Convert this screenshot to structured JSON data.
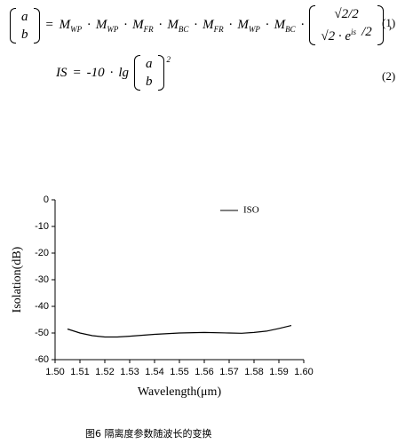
{
  "equations": [
    {
      "number": "(1)",
      "tokens": [
        {
          "rows": [
            [
              {
                "t": "a"
              }
            ],
            [
              {
                "t": "b"
              }
            ]
          ]
        },
        {
          "t": "="
        },
        {
          "t": "M",
          "sub": "WP"
        },
        {
          "t": "·"
        },
        {
          "t": "M",
          "sub": "WP"
        },
        {
          "t": "·"
        },
        {
          "t": "M",
          "sub": "FR"
        },
        {
          "t": "·"
        },
        {
          "t": "M",
          "sub": "BC"
        },
        {
          "t": "·"
        },
        {
          "t": "M",
          "sub": "FR"
        },
        {
          "t": "·"
        },
        {
          "t": "M",
          "sub": "WP"
        },
        {
          "t": "·"
        },
        {
          "t": "M",
          "sub": "BC"
        },
        {
          "t": "·"
        },
        {
          "rows": [
            [
              {
                "t": "√2/2"
              }
            ],
            [
              {
                "t": "√2 · e",
                "sup": "is"
              },
              {
                "t": "/2"
              }
            ]
          ]
        },
        {
          "t": ","
        }
      ]
    },
    {
      "number": "(2)",
      "tokens": [
        {
          "t": "IS"
        },
        {
          "t": "="
        },
        {
          "t": "-10"
        },
        {
          "t": "·"
        },
        {
          "t": "lg"
        },
        {
          "rows": [
            [
              {
                "t": "a"
              }
            ],
            [
              {
                "t": "b"
              }
            ]
          ],
          "sup": "2"
        }
      ]
    }
  ],
  "chart_data": {
    "type": "line",
    "xlabel": "Wavelength(μm)",
    "ylabel": "Isolation(dB)",
    "x": [
      1.505,
      1.51,
      1.515,
      1.52,
      1.525,
      1.53,
      1.54,
      1.55,
      1.56,
      1.57,
      1.575,
      1.58,
      1.585,
      1.59,
      1.595
    ],
    "series": [
      {
        "name": "ISO",
        "color": "#000000",
        "values": [
          -48.5,
          -50,
          -51,
          -51.5,
          -51.5,
          -51.2,
          -50.5,
          -50,
          -49.8,
          -50,
          -50.1,
          -49.8,
          -49.3,
          -48.3,
          -47.2
        ]
      }
    ],
    "xlim": [
      1.5,
      1.6
    ],
    "ylim": [
      -60,
      0
    ],
    "xticks": [
      {
        "value": 1.5,
        "label": "1.50"
      },
      1.51,
      1.52,
      1.53,
      1.54,
      1.55,
      1.56,
      1.57,
      1.58,
      1.59,
      {
        "value": 1.6,
        "label": "1.60"
      }
    ],
    "yticks": [
      0,
      -10,
      -20,
      -30,
      -40,
      -50,
      -60
    ],
    "legend": "upper-right"
  },
  "caption": "图6 隔离度参数随波长的变换"
}
